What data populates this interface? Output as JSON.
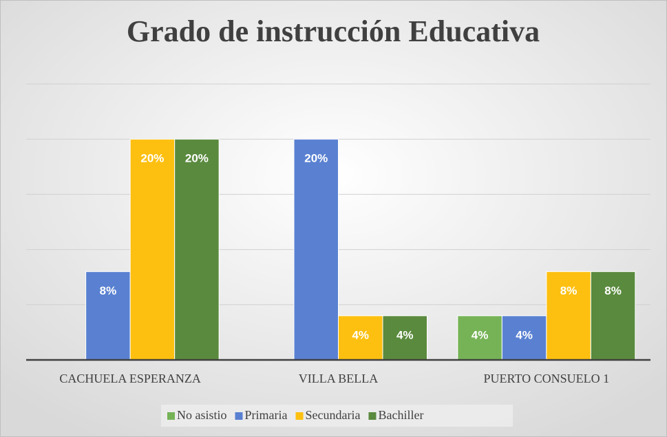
{
  "chart_data": {
    "type": "bar",
    "title": "Grado de instrucción Educativa",
    "categories": [
      "CACHUELA ESPERANZA",
      "VILLA BELLA",
      "PUERTO CONSUELO 1"
    ],
    "series": [
      {
        "name": "No asistio",
        "color": "#76b357",
        "values": [
          null,
          null,
          4
        ],
        "value_labels": [
          null,
          null,
          "4%"
        ]
      },
      {
        "name": "Primaria",
        "color": "#5a81d1",
        "values": [
          8,
          20,
          4
        ],
        "value_labels": [
          "8%",
          "20%",
          "4%"
        ]
      },
      {
        "name": "Secundaria",
        "color": "#fdc010",
        "values": [
          20,
          4,
          8
        ],
        "value_labels": [
          "20%",
          "4%",
          "8%"
        ]
      },
      {
        "name": "Bachiller",
        "color": "#5a8a3e",
        "values": [
          20,
          4,
          8
        ],
        "value_labels": [
          "20%",
          "4%",
          "8%"
        ]
      }
    ],
    "ylim": [
      0,
      25
    ],
    "yticks": [
      0,
      5,
      10,
      15,
      20,
      25
    ],
    "grid": true,
    "legend": "bottom"
  }
}
